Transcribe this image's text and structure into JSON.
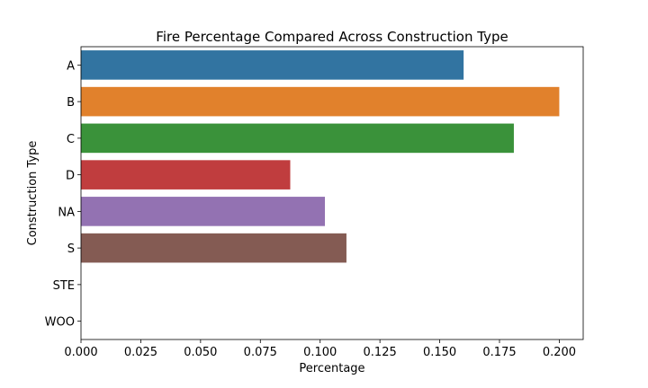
{
  "chart_data": {
    "type": "bar",
    "orientation": "horizontal",
    "title": "Fire Percentage Compared Across Construction Type",
    "xlabel": "Percentage",
    "ylabel": "Construction Type",
    "categories": [
      "A",
      "B",
      "C",
      "D",
      "NA",
      "S",
      "STE",
      "WOO"
    ],
    "values": [
      0.16,
      0.2,
      0.181,
      0.0875,
      0.102,
      0.111,
      0.0,
      0.0
    ],
    "colors": [
      "#3274a1",
      "#e1812c",
      "#3a923a",
      "#c03d3e",
      "#9372b2",
      "#845b53",
      "#d684bd",
      "#7f7f7f"
    ],
    "xlim": [
      0.0,
      0.21
    ],
    "xticks": [
      0.0,
      0.025,
      0.05,
      0.075,
      0.1,
      0.125,
      0.15,
      0.175,
      0.2
    ],
    "xtick_labels": [
      "0.000",
      "0.025",
      "0.050",
      "0.075",
      "0.100",
      "0.125",
      "0.150",
      "0.175",
      "0.200"
    ],
    "grid": false,
    "legend": "none"
  }
}
